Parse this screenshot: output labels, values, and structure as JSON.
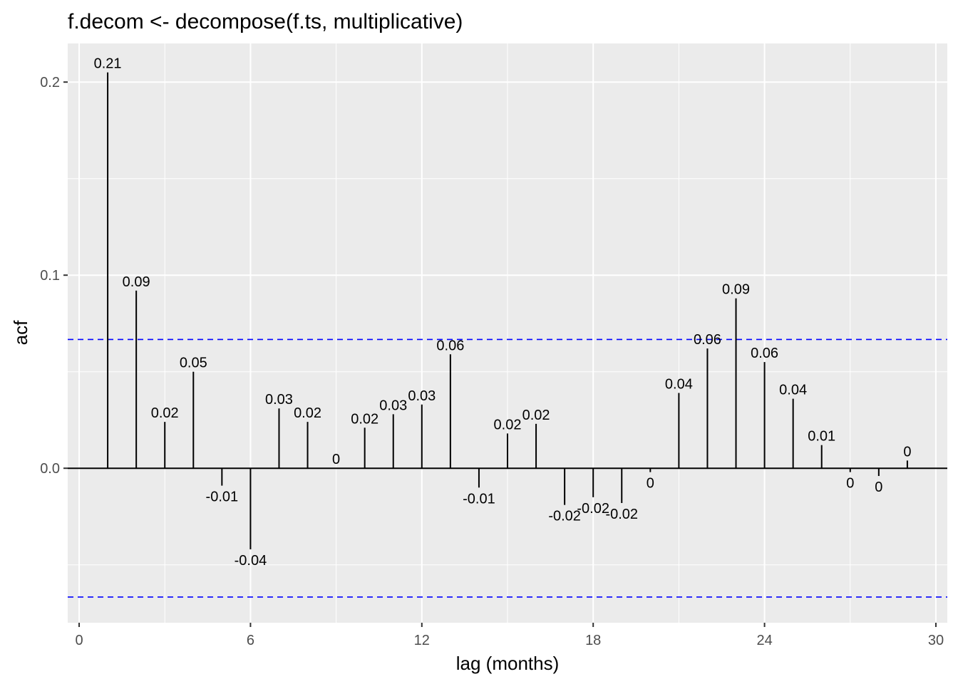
{
  "chart_data": {
    "type": "bar",
    "title": "f.decom <- decompose(f.ts, multiplicative)",
    "xlabel": "lag (months)",
    "ylabel": "acf",
    "xlim": [
      -0.4,
      30.4
    ],
    "ylim": [
      -0.08,
      0.22
    ],
    "x_ticks": [
      0,
      6,
      12,
      18,
      24,
      30
    ],
    "x_tick_labels": [
      "0",
      "6",
      "12",
      "18",
      "24",
      "30"
    ],
    "y_ticks": [
      0.0,
      0.1,
      0.2
    ],
    "y_tick_labels": [
      "0.0",
      "0.1",
      "0.2"
    ],
    "y_minor_ticks": [
      -0.05,
      0.05,
      0.15
    ],
    "x_minor_ticks": [
      3,
      9,
      15,
      21,
      27
    ],
    "grid": true,
    "legend": "none",
    "confidence_bounds": [
      0.0667,
      -0.0667
    ],
    "colors": {
      "panel": "#ebebeb",
      "grid": "#ffffff",
      "bars": "#000000",
      "bounds": "#0000ff"
    },
    "x": [
      1,
      2,
      3,
      4,
      5,
      6,
      7,
      8,
      9,
      10,
      11,
      12,
      13,
      14,
      15,
      16,
      17,
      18,
      19,
      20,
      21,
      22,
      23,
      24,
      25,
      26,
      27,
      28,
      29
    ],
    "values": [
      0.205,
      0.092,
      0.024,
      0.05,
      -0.009,
      -0.042,
      0.031,
      0.024,
      0.0,
      0.021,
      0.028,
      0.033,
      0.059,
      -0.01,
      0.018,
      0.023,
      -0.019,
      -0.015,
      -0.018,
      -0.002,
      0.039,
      0.062,
      0.088,
      0.055,
      0.036,
      0.012,
      -0.002,
      -0.004,
      0.004
    ],
    "labels": [
      "0.21",
      "0.09",
      "0.02",
      "0.05",
      "-0.01",
      "-0.04",
      "0.03",
      "0.02",
      "0",
      "0.02",
      "0.03",
      "0.03",
      "0.06",
      "-0.01",
      "0.02",
      "0.02",
      "-0.02",
      "-0.02",
      "-0.02",
      "0",
      "0.04",
      "0.06",
      "0.09",
      "0.06",
      "0.04",
      "0.01",
      "0",
      "0",
      "0"
    ]
  }
}
